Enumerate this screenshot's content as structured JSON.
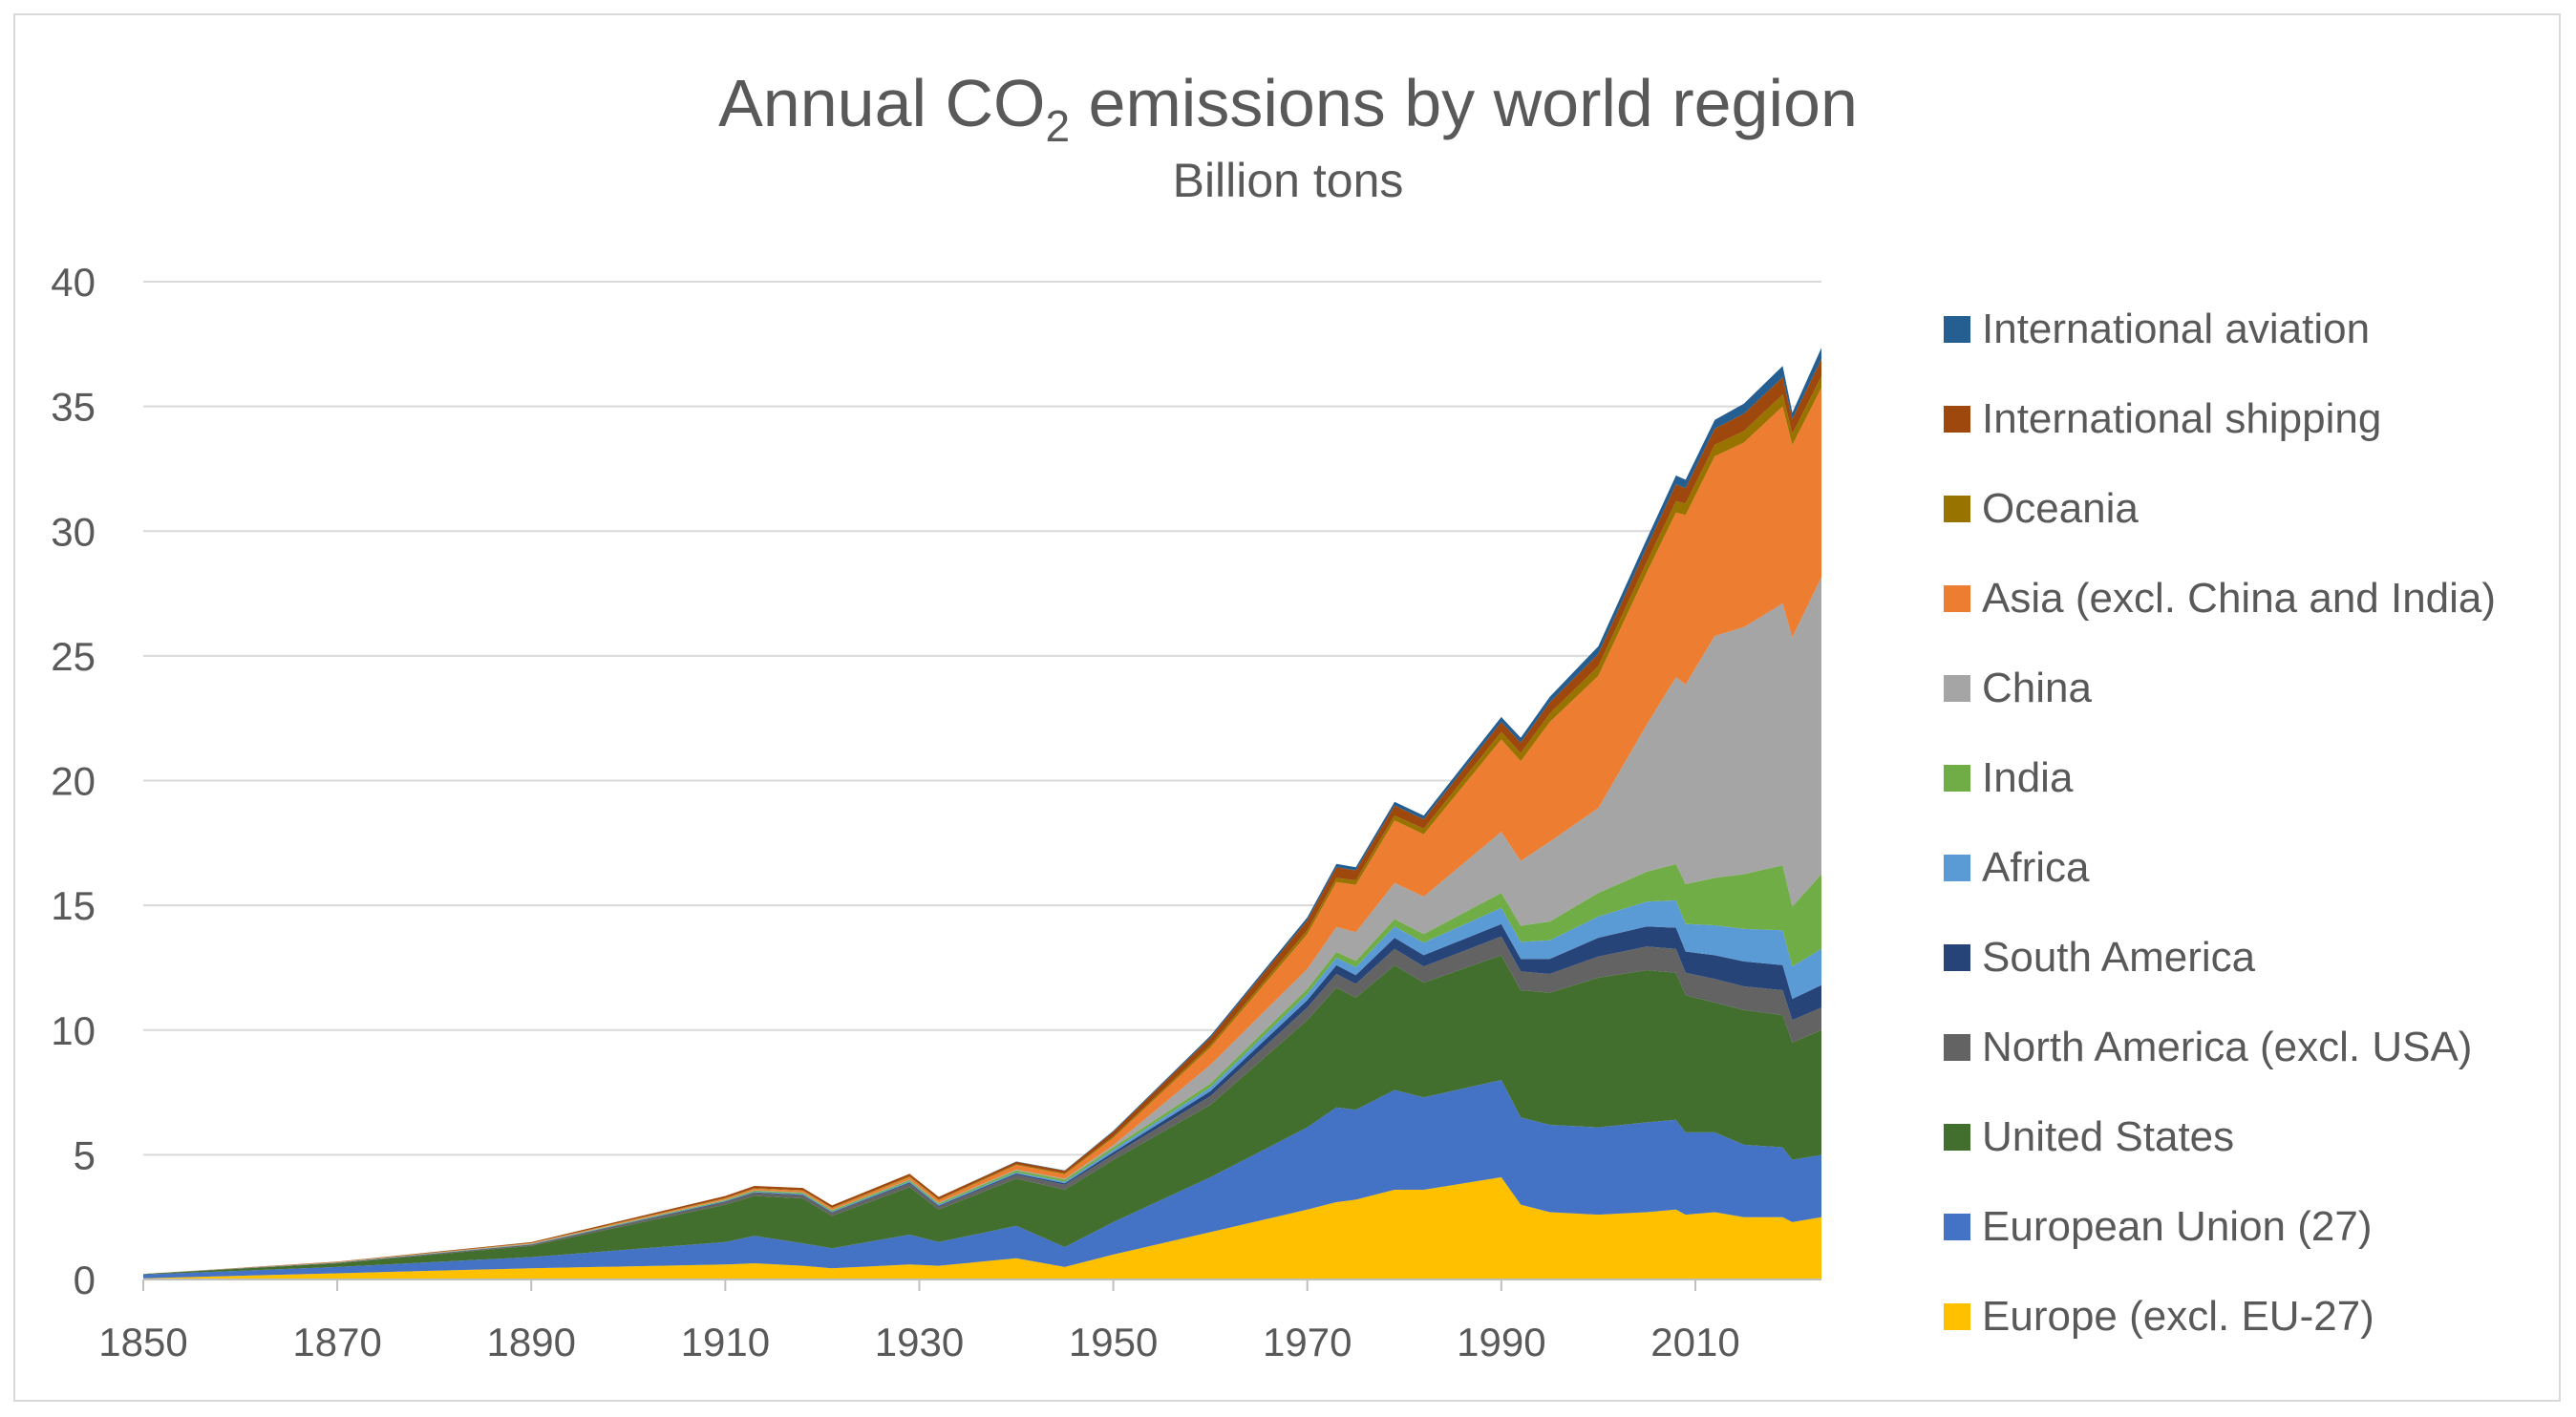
{
  "chart_title": {
    "main": "Annual CO",
    "sub": "2",
    "rest": " emissions by world region"
  },
  "chart_subtitle": "Billion tons",
  "chart_data": {
    "type": "area",
    "stacked": true,
    "title": "Annual CO2 emissions by world region",
    "subtitle": "Billion tons",
    "xlabel": "",
    "ylabel": "",
    "xlim": [
      1850,
      2023
    ],
    "ylim": [
      0,
      40
    ],
    "x_ticks": [
      1850,
      1870,
      1890,
      1910,
      1930,
      1950,
      1970,
      1990,
      2010
    ],
    "y_ticks": [
      0,
      5,
      10,
      15,
      20,
      25,
      30,
      35,
      40
    ],
    "grid": "horizontal",
    "legend": "right",
    "x": [
      1850,
      1870,
      1890,
      1910,
      1913,
      1918,
      1921,
      1929,
      1932,
      1940,
      1945,
      1950,
      1960,
      1970,
      1973,
      1975,
      1979,
      1982,
      1990,
      1992,
      1995,
      2000,
      2005,
      2008,
      2009,
      2012,
      2015,
      2019,
      2020,
      2023
    ],
    "series": [
      {
        "name": "Europe (excl. EU-27)",
        "color": "#FFC000",
        "values": [
          0.05,
          0.25,
          0.45,
          0.6,
          0.65,
          0.55,
          0.45,
          0.6,
          0.55,
          0.85,
          0.5,
          1.0,
          1.9,
          2.8,
          3.1,
          3.2,
          3.6,
          3.6,
          4.1,
          3.0,
          2.7,
          2.6,
          2.7,
          2.8,
          2.6,
          2.7,
          2.5,
          2.5,
          2.3,
          2.5
        ]
      },
      {
        "name": "European Union (27)",
        "color": "#4472C4",
        "values": [
          0.15,
          0.25,
          0.45,
          0.9,
          1.1,
          0.9,
          0.8,
          1.2,
          0.95,
          1.3,
          0.8,
          1.3,
          2.2,
          3.3,
          3.8,
          3.6,
          4.0,
          3.7,
          3.9,
          3.5,
          3.5,
          3.5,
          3.6,
          3.6,
          3.3,
          3.2,
          2.9,
          2.8,
          2.5,
          2.5
        ]
      },
      {
        "name": "United States",
        "color": "#426E2E",
        "values": [
          0.02,
          0.15,
          0.45,
          1.5,
          1.6,
          1.8,
          1.3,
          1.9,
          1.3,
          1.9,
          2.3,
          2.5,
          2.9,
          4.3,
          4.8,
          4.5,
          5.0,
          4.6,
          5.0,
          5.1,
          5.3,
          6.0,
          6.1,
          5.9,
          5.5,
          5.2,
          5.4,
          5.3,
          4.7,
          5.0
        ]
      },
      {
        "name": "North America (excl. USA)",
        "color": "#636363",
        "values": [
          0.005,
          0.02,
          0.05,
          0.1,
          0.12,
          0.12,
          0.12,
          0.15,
          0.12,
          0.15,
          0.2,
          0.2,
          0.35,
          0.5,
          0.55,
          0.55,
          0.65,
          0.65,
          0.75,
          0.75,
          0.75,
          0.85,
          0.95,
          0.95,
          0.9,
          0.95,
          0.95,
          1.0,
          0.9,
          0.9
        ]
      },
      {
        "name": "South America",
        "color": "#264478",
        "values": [
          0,
          0.005,
          0.01,
          0.03,
          0.03,
          0.03,
          0.03,
          0.04,
          0.04,
          0.05,
          0.06,
          0.1,
          0.2,
          0.3,
          0.35,
          0.35,
          0.45,
          0.45,
          0.5,
          0.5,
          0.6,
          0.75,
          0.8,
          0.85,
          0.85,
          0.95,
          1.0,
          1.0,
          0.85,
          0.9
        ]
      },
      {
        "name": "Africa",
        "color": "#5B9BD5",
        "values": [
          0,
          0.005,
          0.01,
          0.02,
          0.02,
          0.03,
          0.03,
          0.04,
          0.04,
          0.05,
          0.06,
          0.1,
          0.15,
          0.25,
          0.3,
          0.32,
          0.45,
          0.5,
          0.65,
          0.68,
          0.75,
          0.85,
          1.0,
          1.1,
          1.1,
          1.2,
          1.3,
          1.4,
          1.3,
          1.45
        ]
      },
      {
        "name": "India",
        "color": "#70AD47",
        "values": [
          0,
          0.005,
          0.01,
          0.04,
          0.05,
          0.05,
          0.05,
          0.06,
          0.06,
          0.08,
          0.09,
          0.1,
          0.15,
          0.2,
          0.23,
          0.25,
          0.3,
          0.35,
          0.6,
          0.65,
          0.75,
          0.95,
          1.2,
          1.45,
          1.6,
          1.9,
          2.2,
          2.6,
          2.4,
          3.0
        ]
      },
      {
        "name": "China",
        "color": "#A5A5A5",
        "values": [
          0,
          0,
          0.005,
          0.01,
          0.01,
          0.01,
          0.01,
          0.02,
          0.02,
          0.03,
          0.03,
          0.08,
          0.75,
          0.8,
          1.0,
          1.15,
          1.45,
          1.5,
          2.45,
          2.6,
          3.2,
          3.4,
          5.9,
          7.5,
          8.0,
          9.7,
          9.9,
          10.5,
          10.8,
          11.9
        ]
      },
      {
        "name": "Asia (excl. China and India)",
        "color": "#ED7D31",
        "values": [
          0,
          0.01,
          0.02,
          0.05,
          0.06,
          0.07,
          0.07,
          0.1,
          0.1,
          0.18,
          0.18,
          0.3,
          0.7,
          1.4,
          1.8,
          1.9,
          2.5,
          2.5,
          3.7,
          4.0,
          4.8,
          5.3,
          6.1,
          6.6,
          6.8,
          7.2,
          7.4,
          7.9,
          7.7,
          7.6
        ]
      },
      {
        "name": "Oceania",
        "color": "#997300",
        "values": [
          0,
          0.01,
          0.01,
          0.02,
          0.02,
          0.02,
          0.02,
          0.03,
          0.03,
          0.03,
          0.04,
          0.05,
          0.1,
          0.15,
          0.17,
          0.18,
          0.2,
          0.22,
          0.3,
          0.32,
          0.34,
          0.38,
          0.42,
          0.45,
          0.46,
          0.46,
          0.46,
          0.47,
          0.45,
          0.45
        ]
      },
      {
        "name": "International shipping",
        "color": "#9E480E",
        "values": [
          0,
          0.01,
          0.03,
          0.08,
          0.09,
          0.09,
          0.09,
          0.1,
          0.1,
          0.1,
          0.1,
          0.2,
          0.3,
          0.4,
          0.43,
          0.4,
          0.4,
          0.38,
          0.4,
          0.42,
          0.45,
          0.5,
          0.6,
          0.68,
          0.62,
          0.65,
          0.7,
          0.7,
          0.6,
          0.7
        ]
      },
      {
        "name": "International aviation",
        "color": "#255E91",
        "values": [
          0,
          0,
          0,
          0,
          0,
          0,
          0,
          0,
          0,
          0.01,
          0.01,
          0.03,
          0.07,
          0.12,
          0.13,
          0.13,
          0.15,
          0.15,
          0.2,
          0.2,
          0.22,
          0.3,
          0.32,
          0.35,
          0.33,
          0.35,
          0.4,
          0.45,
          0.25,
          0.45
        ]
      }
    ]
  }
}
